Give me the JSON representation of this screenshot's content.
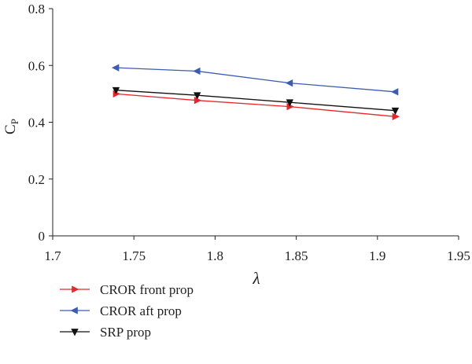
{
  "chart_data": {
    "type": "line",
    "xlabel": "λ",
    "ylabel": {
      "base": "C",
      "sub": "P"
    },
    "xlim": [
      1.7,
      1.95
    ],
    "ylim": [
      0,
      0.8
    ],
    "xticks": [
      "1.7",
      "1.75",
      "1.8",
      "1.85",
      "1.9",
      "1.95"
    ],
    "yticks": [
      "0",
      "0.2",
      "0.4",
      "0.6",
      "0.8"
    ],
    "grid": false,
    "legend_position": "bottom-left",
    "series": [
      {
        "name": "CROR front prop",
        "color": "#e8262a",
        "marker": "triangle-right",
        "x": [
          1.739,
          1.789,
          1.846,
          1.911
        ],
        "y": [
          0.5,
          0.477,
          0.455,
          0.42
        ]
      },
      {
        "name": "CROR aft prop",
        "color": "#3c5cb0",
        "marker": "triangle-left",
        "x": [
          1.739,
          1.789,
          1.846,
          1.911
        ],
        "y": [
          0.592,
          0.58,
          0.538,
          0.507
        ]
      },
      {
        "name": "SRP prop",
        "color": "#111111",
        "marker": "triangle-down",
        "x": [
          1.739,
          1.789,
          1.846,
          1.911
        ],
        "y": [
          0.513,
          0.495,
          0.47,
          0.441
        ]
      }
    ]
  }
}
